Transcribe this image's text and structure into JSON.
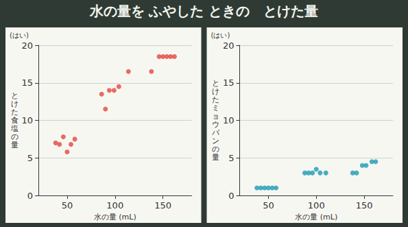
{
  "title": "水の量を ふやした ときの　とけた量",
  "chart_data": [
    {
      "type": "scatter",
      "y_unit": "(はい)",
      "ylabel": "とけた食塩の量",
      "xlabel": "水の量 (mL)",
      "x": [
        38,
        42,
        46,
        50,
        54,
        58,
        86,
        90,
        94,
        99,
        104,
        114,
        138,
        146,
        150,
        154,
        158,
        162
      ],
      "values": [
        7,
        6.8,
        7.8,
        5.8,
        6.8,
        7.5,
        13.5,
        11.5,
        14,
        14,
        14.5,
        16.5,
        16.5,
        18.5,
        18.5,
        18.5,
        18.5,
        18.5
      ],
      "color": "#e2473f",
      "xlim": [
        20,
        180
      ],
      "xticks": [
        50,
        100,
        150
      ],
      "ylim": [
        0,
        20
      ],
      "yticks": [
        0,
        5,
        10,
        15,
        20
      ],
      "grid": true
    },
    {
      "type": "scatter",
      "y_unit": "(はい)",
      "ylabel": "とけたミョウバンの量",
      "xlabel": "水の量 (mL)",
      "x": [
        38,
        42,
        46,
        50,
        54,
        58,
        88,
        92,
        96,
        100,
        104,
        110,
        138,
        142,
        148,
        152,
        158,
        162
      ],
      "values": [
        1,
        1,
        1,
        1,
        1,
        1,
        3,
        3,
        3,
        3.5,
        3,
        3,
        3,
        3,
        4,
        4,
        4.5,
        4.5
      ],
      "color": "#1b9bb5",
      "xlim": [
        20,
        180
      ],
      "xticks": [
        50,
        100,
        150
      ],
      "ylim": [
        0,
        20
      ],
      "yticks": [
        0,
        5,
        10,
        15,
        20
      ],
      "grid": true
    }
  ]
}
